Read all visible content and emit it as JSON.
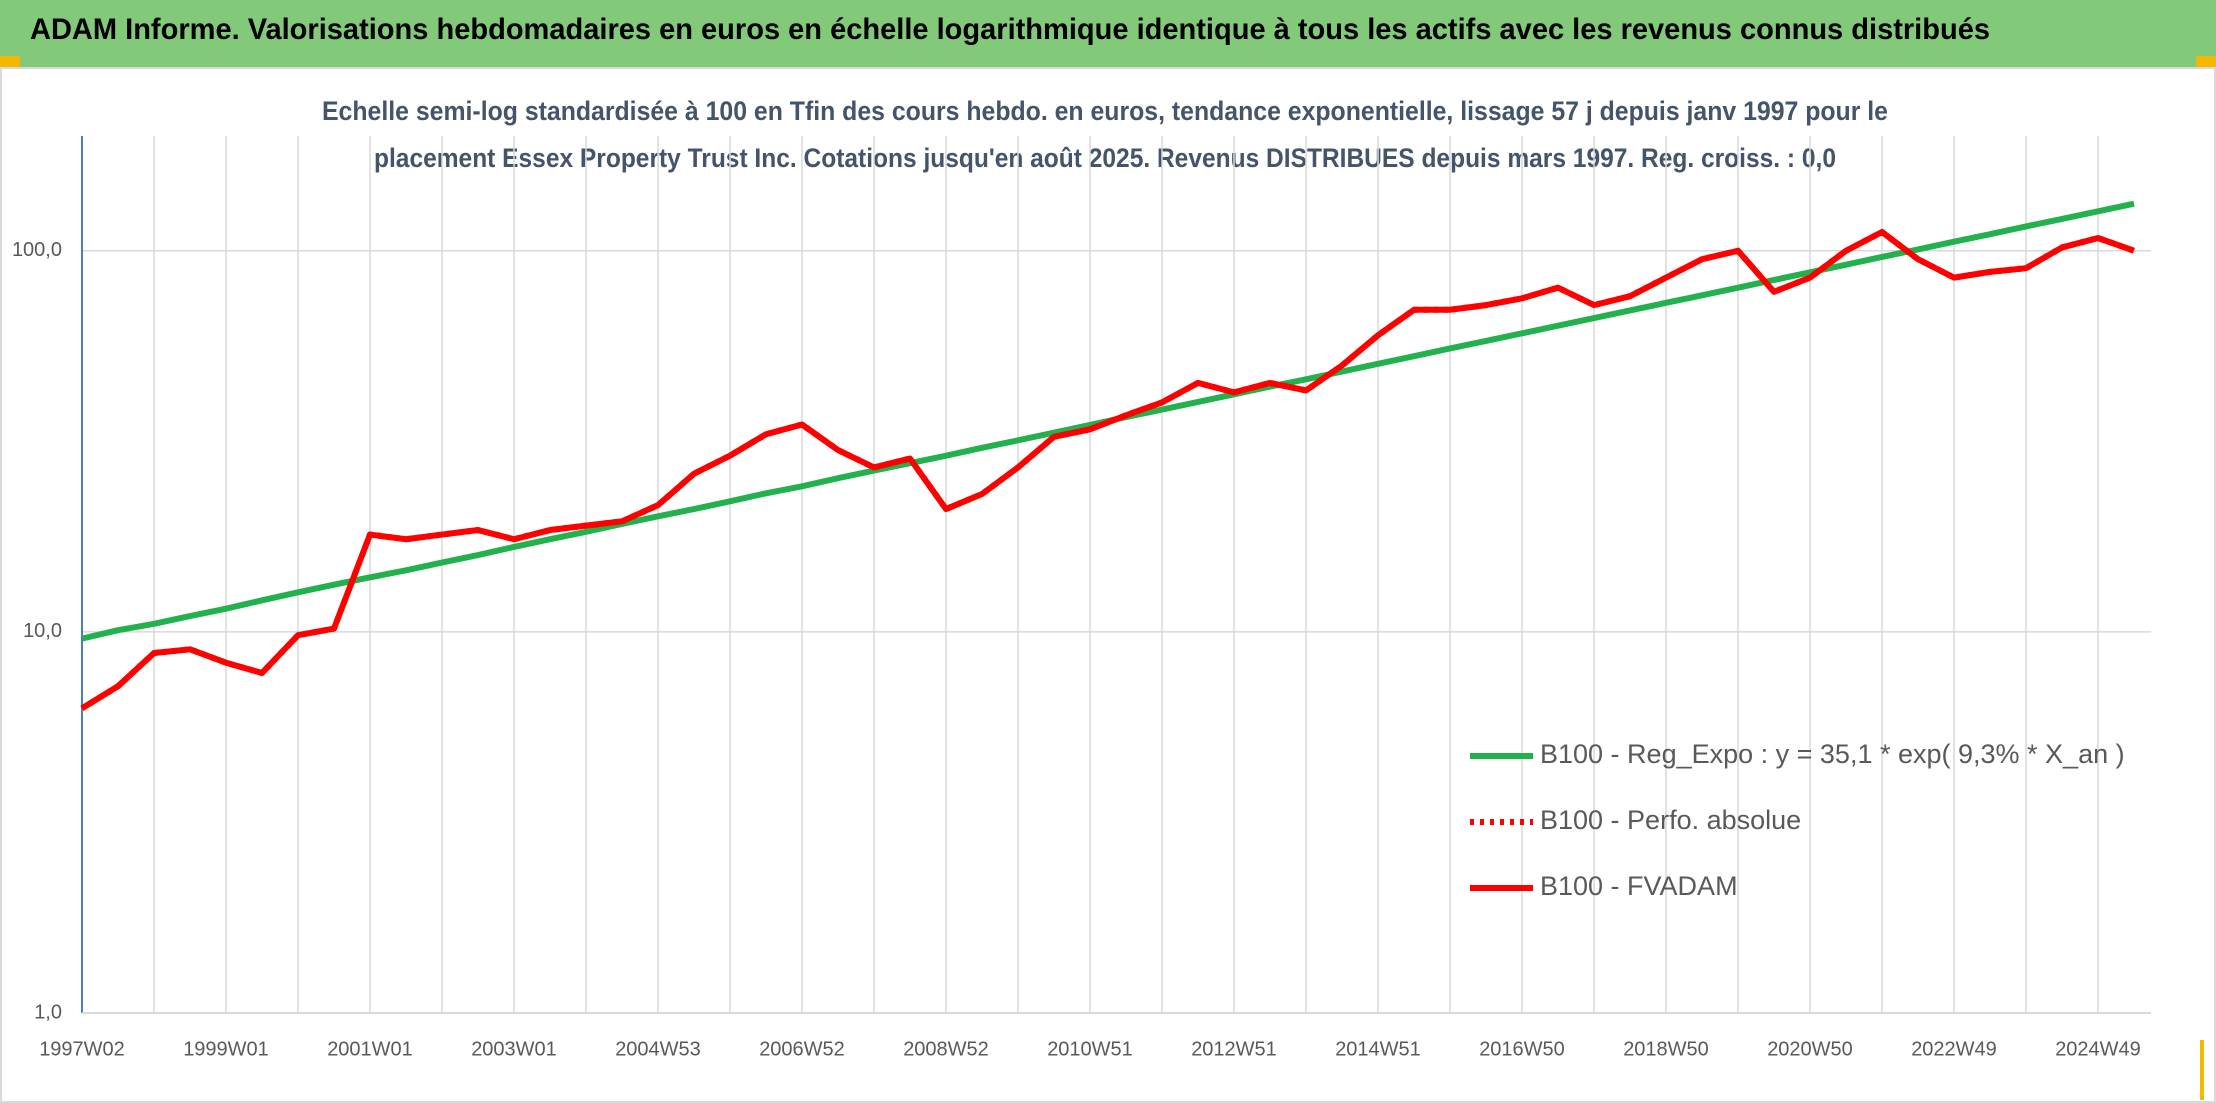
{
  "chart_data": {
    "type": "line",
    "header": "ADAM Informe. Valorisations hebdomadaires en euros en échelle logarithmique identique à tous les actifs avec les revenus connus distribués",
    "subtitle": [
      "Echelle semi-log standardisée à 100 en Tfin des cours hebdo. en euros, tendance exponentielle, lissage 57 j depuis janv 1997 pour le",
      "placement Essex Property Trust Inc. Cotations jusqu'en août 2025. Revenus DISTRIBUES depuis mars 1997. Reg. croiss. : 0,0"
    ],
    "log_scale": true,
    "grid": true,
    "legend": "lower-right",
    "ylim": [
      1,
      200
    ],
    "yticks": [
      {
        "value": 1,
        "label": "1,0"
      },
      {
        "value": 10,
        "label": "10,0"
      },
      {
        "value": 100,
        "label": "100,0"
      }
    ],
    "categories": [
      "1997W02",
      null,
      null,
      null,
      "1999W01",
      null,
      null,
      null,
      "2001W01",
      null,
      null,
      null,
      "2003W01",
      null,
      null,
      null,
      "2004W53",
      null,
      null,
      null,
      "2006W52",
      null,
      null,
      null,
      "2008W52",
      null,
      null,
      null,
      "2010W51",
      null,
      null,
      null,
      "2012W51",
      null,
      null,
      null,
      "2014W51",
      null,
      null,
      null,
      "2016W50",
      null,
      null,
      null,
      "2018W50",
      null,
      null,
      null,
      "2020W50",
      null,
      null,
      null,
      "2022W49",
      null,
      null,
      null,
      "2024W49",
      null
    ],
    "series": [
      {
        "name": "B100 - Reg_Expo : y = 35,1 * exp( 9,3% *  X_an )",
        "color": "#22b14c",
        "style": "solid",
        "values": [
          9.6,
          10.1,
          10.5,
          11.0,
          11.5,
          12.1,
          12.7,
          13.3,
          13.9,
          14.5,
          15.2,
          15.9,
          16.7,
          17.5,
          18.3,
          19.2,
          20.1,
          21.0,
          22.0,
          23.1,
          24.1,
          25.3,
          26.5,
          27.7,
          29.0,
          30.4,
          31.8,
          33.3,
          34.9,
          36.6,
          38.3,
          40.1,
          42.0,
          44.0,
          46.0,
          48.2,
          50.5,
          52.9,
          55.4,
          58.0,
          60.7,
          63.6,
          66.6,
          69.7,
          73.0,
          76.4,
          80.0,
          83.8,
          87.8,
          91.9,
          96.3,
          100.8,
          105.6,
          110.5,
          115.8,
          121.2,
          126.9,
          132.9
        ]
      },
      {
        "name": "B100 - Perfo. absolue",
        "color": "#ff0000",
        "style": "dotted",
        "values": [
          6.3,
          7.2,
          8.8,
          9.0,
          8.3,
          7.8,
          9.8,
          10.2,
          18,
          17.5,
          18,
          18.5,
          17.5,
          18.5,
          19,
          19.5,
          21.5,
          26,
          29,
          33,
          35,
          30,
          27,
          28.5,
          21,
          23,
          27,
          32.5,
          34,
          37,
          40,
          45,
          42.5,
          45,
          43,
          50,
          60,
          70,
          70,
          72,
          75,
          80,
          72,
          76,
          85,
          95,
          100,
          78,
          85,
          100,
          112,
          95,
          85,
          88,
          90,
          102,
          108,
          100
        ]
      },
      {
        "name": "B100 - FVADAM",
        "color": "#ff0000",
        "style": "solid",
        "values": [
          6.3,
          7.2,
          8.8,
          9.0,
          8.3,
          7.8,
          9.8,
          10.2,
          18,
          17.5,
          18,
          18.5,
          17.5,
          18.5,
          19,
          19.5,
          21.5,
          26,
          29,
          33,
          35,
          30,
          27,
          28.5,
          21,
          23,
          27,
          32.5,
          34,
          37,
          40,
          45,
          42.5,
          45,
          43,
          50,
          60,
          70,
          70,
          72,
          75,
          80,
          72,
          76,
          85,
          95,
          100,
          78,
          85,
          100,
          112,
          95,
          85,
          88,
          90,
          102,
          108,
          100
        ]
      }
    ]
  }
}
